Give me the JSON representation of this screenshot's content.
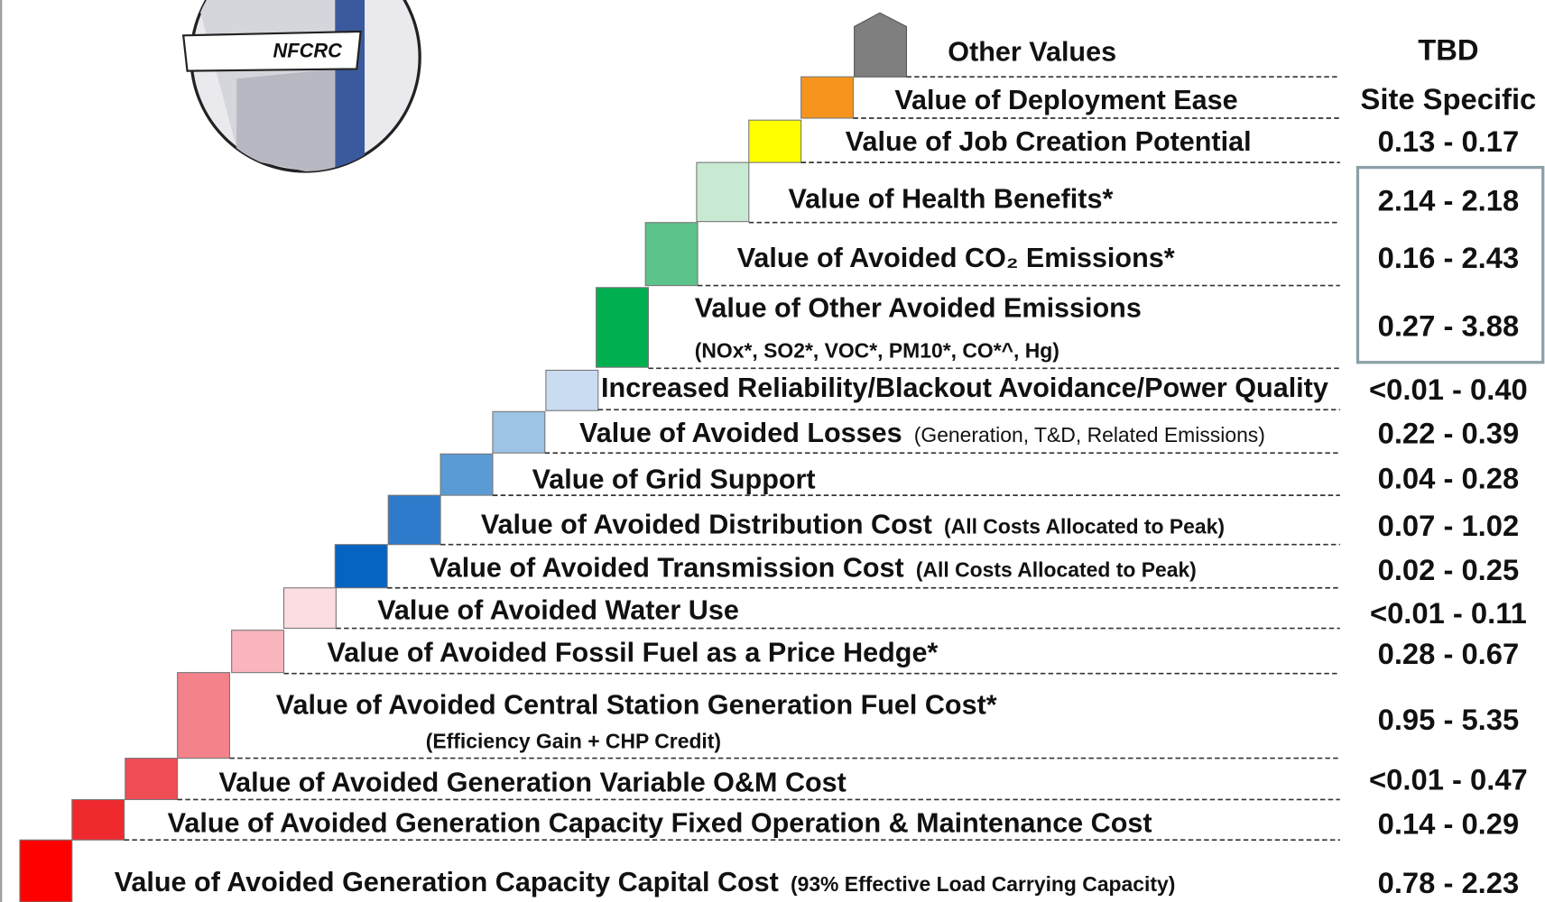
{
  "logo": "NFCRC",
  "rows": [
    {
      "label": "Other Values",
      "value": "TBD",
      "color": "#7f7f7f"
    },
    {
      "label": "Value of Deployment Ease",
      "value": "Site Specific",
      "color": "#f7941d"
    },
    {
      "label": "Value of Job Creation Potential",
      "value": "0.13 - 0.17",
      "color": "#ffff00"
    },
    {
      "label": "Value of Health Benefits*",
      "value": "2.14 - 2.18",
      "color": "#c8ead3"
    },
    {
      "label": "Value of Avoided CO₂ Emissions*",
      "value": "0.16 - 2.43",
      "color": "#5cc38b"
    },
    {
      "label": "Value of Other Avoided Emissions",
      "note": "(NOx*,  SO2*, VOC*, PM10*, CO*^, Hg)",
      "value": "0.27 - 3.88",
      "color": "#00b050"
    },
    {
      "label": "Increased Reliability/Blackout Avoidance/Power Quality",
      "value": "<0.01 - 0.40",
      "color": "#c9dcf2"
    },
    {
      "label": "Value of Avoided Losses",
      "note": "(Generation, T&D, Related Emissions)",
      "value": "0.22 - 0.39",
      "color": "#9dc3e6"
    },
    {
      "label": "Value of Grid Support",
      "value": "0.04 - 0.28",
      "color": "#5b9bd5"
    },
    {
      "label": "Value of Avoided Distribution Cost",
      "note": "(All Costs Allocated to Peak)",
      "value": "0.07 - 1.02",
      "color": "#2e7bcb"
    },
    {
      "label": "Value of Avoided Transmission Cost",
      "note": "(All Costs Allocated to Peak)",
      "value": "0.02 - 0.25",
      "color": "#0563c1"
    },
    {
      "label": "Value of Avoided Water Use",
      "value": "<0.01 - 0.11",
      "color": "#fbdde2"
    },
    {
      "label": "Value of Avoided Fossil Fuel as a Price Hedge*",
      "value": "0.28 - 0.67",
      "color": "#f9b4bd"
    },
    {
      "label": "Value of Avoided Central Station Generation Fuel Cost*",
      "note": "(Efficiency Gain + CHP Credit)",
      "value": "0.95 - 5.35",
      "color": "#f4828a"
    },
    {
      "label": "Value of Avoided Generation Variable O&M Cost",
      "value": "<0.01 - 0.47",
      "color": "#f04c54"
    },
    {
      "label": "Value of Avoided Generation Capacity Fixed Operation & Maintenance Cost",
      "value": "0.14 - 0.29",
      "color": "#ee2a2f"
    },
    {
      "label": "Value of Avoided Generation Capacity Capital Cost",
      "note": "(93% Effective Load Carrying Capacity)",
      "value": "0.78 - 2.23",
      "color": "#ff0000"
    }
  ]
}
